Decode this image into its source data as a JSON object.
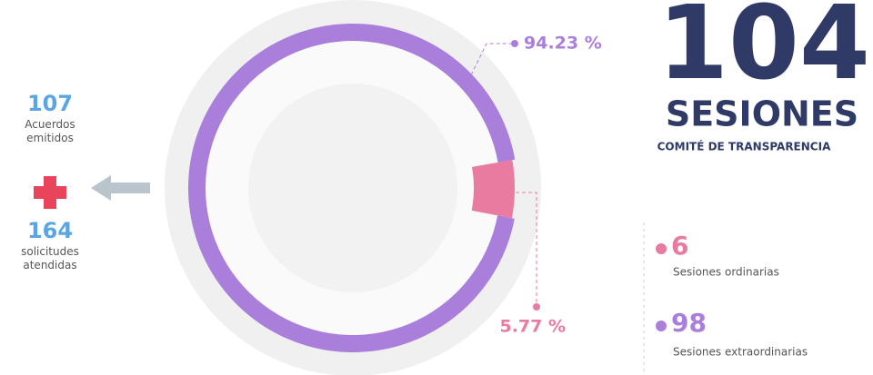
{
  "chart_data": {
    "type": "donut",
    "title": "104",
    "subtitle": "SESIONES",
    "caption": "COMITÉ DE TRANSPARENCIA",
    "categories": [
      "Sesiones ordinarias",
      "Sesiones extraordinarias"
    ],
    "counts": [
      6,
      98
    ],
    "values": [
      5.77,
      94.23
    ],
    "value_labels": [
      "5.77 %",
      "94.23 %"
    ],
    "colors": [
      "#e97aa0",
      "#a97fdb"
    ]
  },
  "side": {
    "items": [
      {
        "value": 107,
        "label": "Acuerdos emitidos"
      },
      {
        "value": 164,
        "label": "solicitudes atendidas"
      }
    ]
  }
}
